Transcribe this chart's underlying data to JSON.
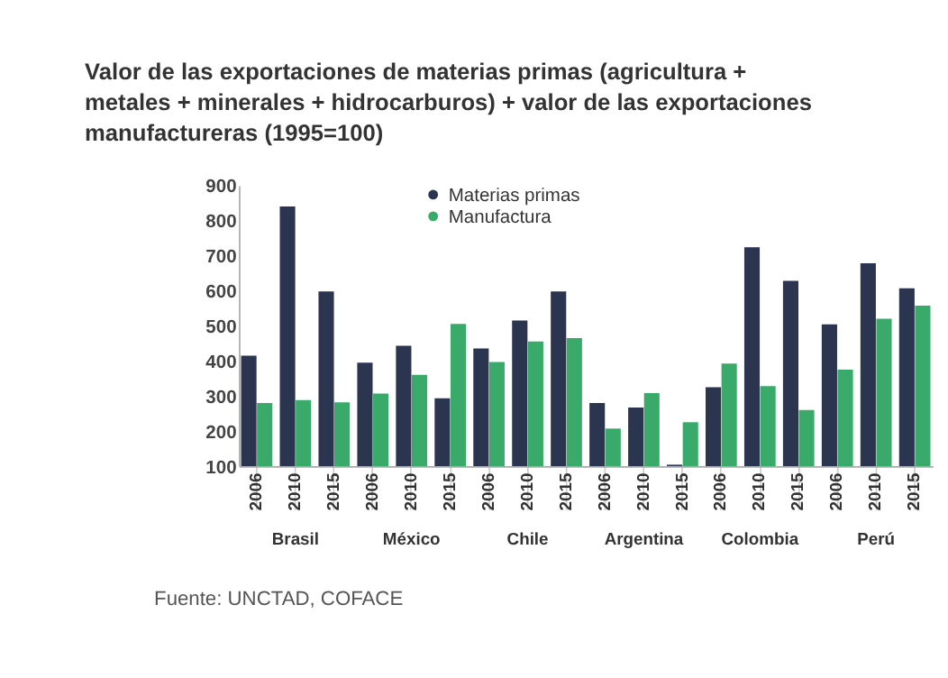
{
  "chart_data": {
    "type": "bar",
    "title": [
      "Valor de las  exportaciones de materias primas  (agricultura +",
      "metales + minerales + hidrocarburos) + valor de las exportaciones",
      "manufactureras (1995=100)"
    ],
    "categories": [
      "2006",
      "2010",
      "2015",
      "2006",
      "2010",
      "2015",
      "2006",
      "2010",
      "2015",
      "2006",
      "2010",
      "2015",
      "2006",
      "2010",
      "2015",
      "2006",
      "2010",
      "2015"
    ],
    "series": [
      {
        "name": "Materias primas",
        "color": "#2b3550",
        "values": [
          415,
          840,
          598,
          395,
          443,
          293,
          435,
          515,
          598,
          280,
          267,
          104,
          325,
          724,
          628,
          504,
          678,
          607
        ]
      },
      {
        "name": "Manufactura",
        "color": "#3aaa6a",
        "values": [
          280,
          288,
          282,
          307,
          360,
          505,
          397,
          455,
          465,
          207,
          308,
          225,
          392,
          328,
          260,
          375,
          520,
          557
        ]
      }
    ],
    "annotations": [
      "Brasil",
      "México",
      "Chile",
      "Argentina",
      "Colombia",
      "Perú",
      "Fuente: UNCTAD, COFACE"
    ],
    "ylim": [
      100,
      900
    ],
    "yticks": [
      100,
      200,
      300,
      400,
      500,
      600,
      700,
      800,
      900
    ],
    "grid": false,
    "legend": "top"
  }
}
